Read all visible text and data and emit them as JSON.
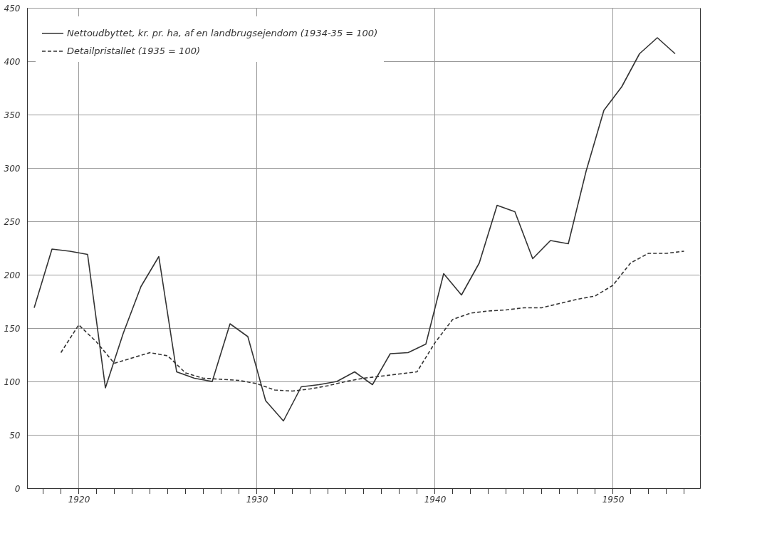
{
  "chart_data": {
    "type": "line",
    "xlim": [
      1917.1,
      1954.9
    ],
    "xticks": [
      {
        "value": 1918,
        "label": null
      },
      {
        "value": 1919,
        "label": null
      },
      1920,
      {
        "value": 1921,
        "label": null
      },
      {
        "value": 1922,
        "label": null
      },
      {
        "value": 1923,
        "label": null
      },
      {
        "value": 1924,
        "label": null
      },
      {
        "value": 1925,
        "label": null
      },
      {
        "value": 1926,
        "label": null
      },
      {
        "value": 1927,
        "label": null
      },
      {
        "value": 1928,
        "label": null
      },
      {
        "value": 1929,
        "label": null
      },
      1930,
      {
        "value": 1931,
        "label": null
      },
      {
        "value": 1932,
        "label": null
      },
      {
        "value": 1933,
        "label": null
      },
      {
        "value": 1934,
        "label": null
      },
      {
        "value": 1935,
        "label": null
      },
      {
        "value": 1936,
        "label": null
      },
      {
        "value": 1937,
        "label": null
      },
      {
        "value": 1938,
        "label": null
      },
      {
        "value": 1939,
        "label": null
      },
      1940,
      {
        "value": 1941,
        "label": null
      },
      {
        "value": 1942,
        "label": null
      },
      {
        "value": 1943,
        "label": null
      },
      {
        "value": 1944,
        "label": null
      },
      {
        "value": 1945,
        "label": null
      },
      {
        "value": 1946,
        "label": null
      },
      {
        "value": 1947,
        "label": null
      },
      {
        "value": 1948,
        "label": null
      },
      {
        "value": 1949,
        "label": null
      },
      1950,
      {
        "value": 1951,
        "label": null
      },
      {
        "value": 1952,
        "label": null
      },
      {
        "value": 1953,
        "label": null
      },
      {
        "value": 1954,
        "label": null
      }
    ],
    "ylim": [
      0,
      450
    ],
    "yticks": [
      0,
      50,
      100,
      150,
      200,
      250,
      300,
      350,
      400,
      450
    ],
    "grid": true,
    "legend": "top left",
    "marker": "none",
    "series": [
      {
        "name": "Nettoudbyttet, kr. pr. ha, af en landbrugsejendom (1934-35 = 100)",
        "color": "#333333",
        "line_style": "solid",
        "x": [
          1917.5,
          1918.5,
          1919.5,
          1920.5,
          1921.5,
          1922.5,
          1923.5,
          1924.5,
          1925.5,
          1926.5,
          1927.5,
          1928.5,
          1929.5,
          1930.5,
          1931.5,
          1932.5,
          1933.5,
          1934.5,
          1935.5,
          1936.5,
          1937.5,
          1938.5,
          1939.5,
          1940.5,
          1941.5,
          1942.5,
          1943.5,
          1944.5,
          1945.5,
          1946.5,
          1947.5,
          1948.5,
          1949.5,
          1950.5,
          1951.5,
          1952.5,
          1953.5
        ],
        "values": [
          169,
          224,
          222,
          219,
          94,
          145,
          189,
          217,
          109,
          103,
          100,
          154,
          142,
          82,
          63,
          95,
          97,
          100,
          109,
          97,
          126,
          127,
          135,
          201,
          181,
          211,
          265,
          259,
          215,
          232,
          229,
          297,
          354,
          376,
          407,
          422,
          407
        ]
      },
      {
        "name": "Detailpristallet (1935 = 100)",
        "color": "#333333",
        "line_style": "dashed",
        "x": [
          1919,
          1920,
          1921,
          1922,
          1923,
          1924,
          1925,
          1926,
          1927,
          1928,
          1929,
          1930,
          1931,
          1932,
          1933,
          1934,
          1935,
          1936,
          1937,
          1938,
          1939,
          1940,
          1941,
          1942,
          1943,
          1944,
          1945,
          1946,
          1947,
          1948,
          1949,
          1950,
          1951,
          1952,
          1953,
          1954
        ],
        "values": [
          127,
          153,
          137,
          117,
          122,
          127,
          124,
          108,
          103,
          102,
          101,
          98,
          92,
          91,
          93,
          96,
          100,
          103,
          105,
          107,
          109,
          136,
          158,
          164,
          166,
          167,
          169,
          169,
          173,
          177,
          180,
          190,
          211,
          220,
          220,
          222
        ]
      }
    ]
  }
}
